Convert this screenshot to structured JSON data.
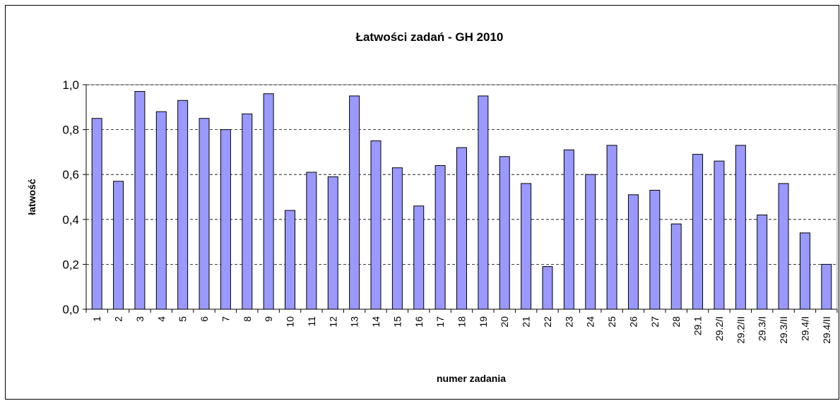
{
  "chart_data": {
    "type": "bar",
    "title": "Łatwości zadań - GH 2010",
    "x_label": "numer zadania",
    "y_label": "łatwość",
    "categories": [
      "1",
      "2",
      "3",
      "4",
      "5",
      "6",
      "7",
      "8",
      "9",
      "10",
      "11",
      "12",
      "13",
      "14",
      "15",
      "16",
      "17",
      "18",
      "19",
      "20",
      "21",
      "22",
      "23",
      "24",
      "25",
      "26",
      "27",
      "28",
      "29.1",
      "29.2/I",
      "29.2/II",
      "29.3/I",
      "29.3/II",
      "29.4/I",
      "29.4/II"
    ],
    "values": [
      0.85,
      0.57,
      0.97,
      0.88,
      0.93,
      0.85,
      0.8,
      0.87,
      0.96,
      0.44,
      0.61,
      0.59,
      0.95,
      0.75,
      0.63,
      0.46,
      0.64,
      0.72,
      0.95,
      0.68,
      0.56,
      0.19,
      0.71,
      0.6,
      0.73,
      0.51,
      0.53,
      0.38,
      0.69,
      0.66,
      0.73,
      0.42,
      0.56,
      0.34,
      0.2
    ],
    "color": "#9999ff",
    "ylim": [
      0,
      1
    ],
    "yticks": [
      {
        "value": 0,
        "label": "0,0"
      },
      {
        "value": 0.2,
        "label": "0,2"
      },
      {
        "value": 0.4,
        "label": "0,4"
      },
      {
        "value": 0.6,
        "label": "0,6"
      },
      {
        "value": 0.8,
        "label": "0,8"
      },
      {
        "value": 1,
        "label": "1,0"
      }
    ],
    "grid": true
  }
}
